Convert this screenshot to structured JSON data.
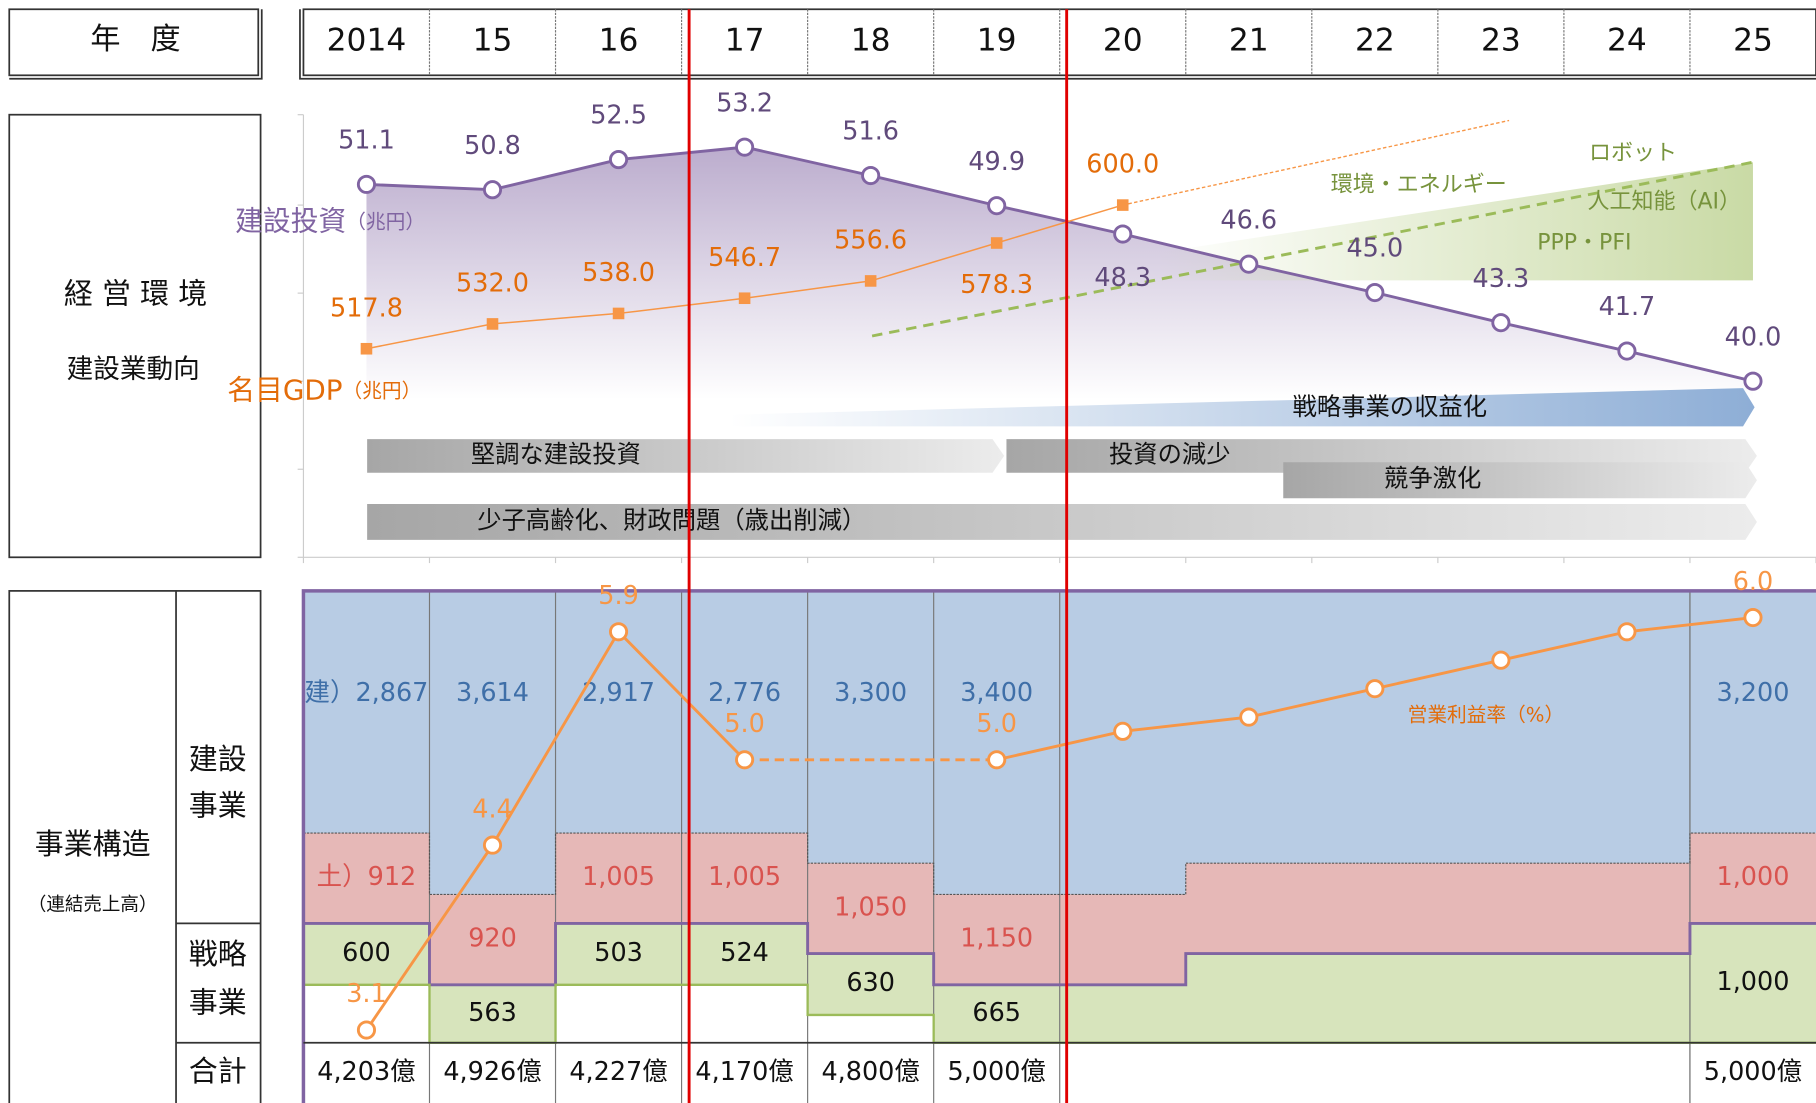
{
  "header": {
    "label": "年　度",
    "years": [
      "2014",
      "15",
      "16",
      "17",
      "18",
      "19",
      "20",
      "21",
      "22",
      "23",
      "24",
      "25"
    ]
  },
  "environment": {
    "label": "経 営 環 境",
    "sublabel": "建設業動向",
    "investment": {
      "name": "建設投資",
      "unit": "（兆円）",
      "color": "#8064a2",
      "values": [
        51.1,
        50.8,
        52.5,
        53.2,
        51.6,
        49.9,
        48.3,
        46.6,
        45.0,
        43.3,
        41.7,
        40.0
      ],
      "value_labels": [
        "51.1",
        "50.8",
        "52.5",
        "53.2",
        "51.6",
        "49.9",
        "48.3",
        "46.6",
        "45.0",
        "43.3",
        "41.7",
        "40.0"
      ]
    },
    "gdp": {
      "name": "名目GDP",
      "unit": "（兆円）",
      "color": "#f79646",
      "values": [
        517.8,
        532.0,
        538.0,
        546.7,
        556.6,
        578.3,
        600.0
      ],
      "value_labels": [
        "517.8",
        "532.0",
        "538.0",
        "546.7",
        "556.6",
        "578.3",
        "600.0"
      ]
    },
    "growth": [
      "ロボット",
      "環境・エネルギー",
      "人工知能（AI）",
      "PPP・PFI"
    ],
    "arrows": [
      "戦略事業の収益化",
      "堅調な建設投資",
      "投資の減少",
      "競争激化",
      "少子高齢化、財政問題（歳出削減）"
    ]
  },
  "structure": {
    "label": "事業構造",
    "sublabel": "（連結売上高）",
    "construction_label": [
      "建設",
      "事業"
    ],
    "strategic_label": [
      "戦略",
      "事業"
    ],
    "total_label": "合計",
    "building_prefix": "建）",
    "civil_prefix": "土）",
    "building": [
      "2,867",
      "3,614",
      "2,917",
      "2,776",
      "3,300",
      "3,400",
      null,
      null,
      null,
      null,
      null,
      "3,200"
    ],
    "civil": [
      "912",
      "920",
      "1,005",
      "1,005",
      "1,050",
      "1,150",
      null,
      null,
      null,
      null,
      null,
      "1,000"
    ],
    "strategic": [
      "600",
      "563",
      "503",
      "524",
      "630",
      "665",
      null,
      null,
      null,
      null,
      null,
      "1,000"
    ],
    "totals": [
      "4,203億",
      "4,926億",
      "4,227億",
      "4,170億",
      "4,800億",
      "5,000億",
      null,
      null,
      null,
      null,
      null,
      "5,000億"
    ],
    "margin": {
      "name": "営業利益率（%）",
      "color": "#f79646",
      "values": [
        3.1,
        4.4,
        5.9,
        5.0,
        null,
        5.0,
        5.2,
        5.3,
        5.5,
        5.7,
        5.9,
        6.0
      ],
      "value_labels": [
        "3.1",
        "4.4",
        "5.9",
        "5.0",
        null,
        "5.0",
        null,
        null,
        null,
        null,
        null,
        "6.0"
      ]
    }
  }
}
